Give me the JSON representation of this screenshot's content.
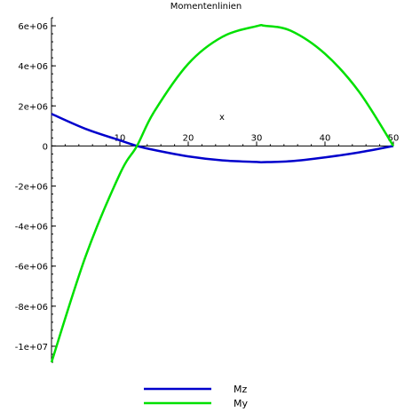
{
  "chart_data": {
    "type": "line",
    "title": "Momentenlinien",
    "xlabel": "x",
    "ylabel": "",
    "xlim": [
      0,
      50
    ],
    "ylim": [
      -10800000,
      6400000
    ],
    "x_ticks": [
      {
        "value": 10,
        "label": "10"
      },
      {
        "value": 20,
        "label": "20"
      },
      {
        "value": 30,
        "label": "30"
      },
      {
        "value": 40,
        "label": "40"
      },
      {
        "value": 50,
        "label": "50"
      }
    ],
    "y_ticks": [
      {
        "value": 6000000,
        "label": "6e+06"
      },
      {
        "value": 4000000,
        "label": "4e+06"
      },
      {
        "value": 2000000,
        "label": "2e+06"
      },
      {
        "value": 0,
        "label": "0"
      },
      {
        "value": -2000000,
        "label": "-2e+06"
      },
      {
        "value": -4000000,
        "label": "-4e+06"
      },
      {
        "value": -6000000,
        "label": "-6e+06"
      },
      {
        "value": -8000000,
        "label": "-8e+06"
      },
      {
        "value": -10000000,
        "label": "-1e+07"
      }
    ],
    "grid": false,
    "legend_position": "bottom",
    "series": [
      {
        "name": "Mz",
        "color": "#0000cc",
        "x": [
          0,
          5,
          10,
          12.5,
          15,
          20,
          25,
          30,
          31,
          35,
          40,
          45,
          50
        ],
        "y": [
          1600000,
          850000,
          280000,
          0,
          -200000,
          -520000,
          -720000,
          -800000,
          -810000,
          -760000,
          -570000,
          -320000,
          0
        ]
      },
      {
        "name": "My",
        "color": "#00e000",
        "x": [
          0,
          5,
          10,
          12.5,
          15,
          20,
          25,
          30,
          31.2,
          35,
          40,
          45,
          50
        ],
        "y": [
          -10800000,
          -5500000,
          -1400000,
          0,
          1700000,
          4100000,
          5450000,
          5980000,
          6000000,
          5750000,
          4600000,
          2700000,
          0
        ]
      }
    ]
  }
}
